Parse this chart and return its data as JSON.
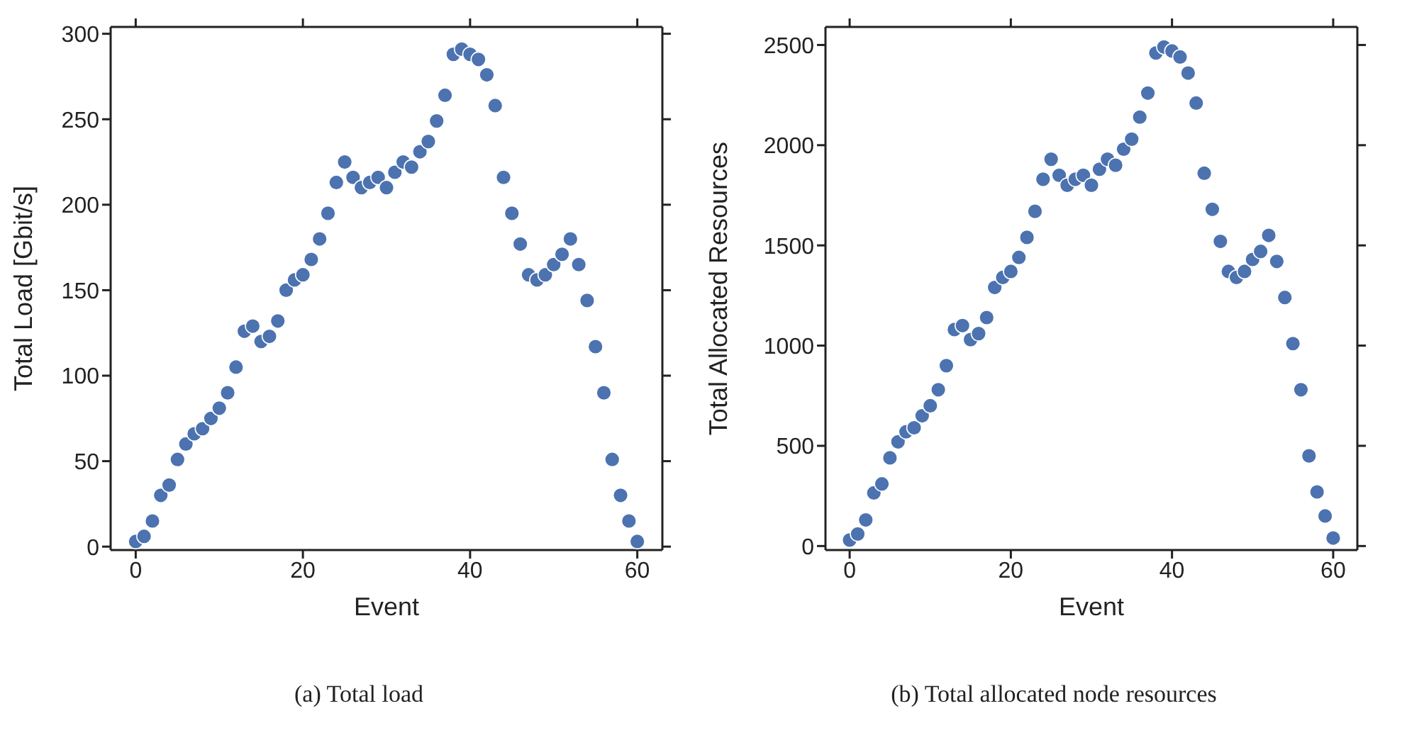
{
  "chart_data": [
    {
      "type": "scatter",
      "title": "(a) Total load",
      "xlabel": "Event",
      "ylabel": "Total Load [Gbit/s]",
      "marker": "circle",
      "x": [
        0,
        1,
        2,
        3,
        4,
        5,
        6,
        7,
        8,
        9,
        10,
        11,
        12,
        13,
        14,
        15,
        16,
        17,
        18,
        19,
        20,
        21,
        22,
        23,
        24,
        25,
        26,
        27,
        28,
        29,
        30,
        31,
        32,
        33,
        34,
        35,
        36,
        37,
        38,
        39,
        40,
        41,
        42,
        43,
        44,
        45,
        46,
        47,
        48,
        49,
        50,
        51,
        52,
        53,
        54,
        55,
        56,
        57,
        58,
        59,
        60
      ],
      "series": [
        {
          "color": "#4c72b0",
          "values": [
            3,
            6,
            15,
            30,
            36,
            51,
            60,
            66,
            69,
            75,
            81,
            90,
            105,
            126,
            129,
            120,
            123,
            132,
            150,
            156,
            159,
            168,
            180,
            195,
            213,
            225,
            216,
            210,
            213,
            216,
            210,
            219,
            225,
            222,
            231,
            237,
            249,
            264,
            288,
            291,
            288,
            285,
            276,
            258,
            216,
            195,
            177,
            159,
            156,
            159,
            165,
            171,
            180,
            165,
            144,
            117,
            90,
            51,
            30,
            15,
            3
          ]
        }
      ],
      "xlim": [
        -3,
        63
      ],
      "xticks": [
        0,
        20,
        40,
        60
      ],
      "ylim": [
        -2,
        304
      ],
      "yticks": [
        0,
        50,
        100,
        150,
        200,
        250,
        300
      ]
    },
    {
      "type": "scatter",
      "title": "(b) Total allocated node resources",
      "xlabel": "Event",
      "ylabel": "Total Allocated Resources",
      "marker": "circle",
      "x": [
        0,
        1,
        2,
        3,
        4,
        5,
        6,
        7,
        8,
        9,
        10,
        11,
        12,
        13,
        14,
        15,
        16,
        17,
        18,
        19,
        20,
        21,
        22,
        23,
        24,
        25,
        26,
        27,
        28,
        29,
        30,
        31,
        32,
        33,
        34,
        35,
        36,
        37,
        38,
        39,
        40,
        41,
        42,
        43,
        44,
        45,
        46,
        47,
        48,
        49,
        50,
        51,
        52,
        53,
        54,
        55,
        56,
        57,
        58,
        59,
        60
      ],
      "series": [
        {
          "color": "#4c72b0",
          "values": [
            30,
            60,
            130,
            265,
            310,
            440,
            520,
            570,
            590,
            650,
            700,
            780,
            900,
            1080,
            1100,
            1030,
            1060,
            1140,
            1290,
            1340,
            1370,
            1440,
            1540,
            1670,
            1830,
            1930,
            1850,
            1800,
            1830,
            1850,
            1800,
            1880,
            1930,
            1900,
            1980,
            2030,
            2140,
            2260,
            2460,
            2490,
            2470,
            2440,
            2360,
            2210,
            1860,
            1680,
            1520,
            1370,
            1340,
            1370,
            1430,
            1470,
            1550,
            1420,
            1240,
            1010,
            780,
            450,
            270,
            150,
            40
          ]
        }
      ],
      "xlim": [
        -3,
        63
      ],
      "xticks": [
        0,
        20,
        40,
        60
      ],
      "ylim": [
        -20,
        2590
      ],
      "yticks": [
        0,
        500,
        1000,
        1500,
        2000,
        2500
      ]
    }
  ]
}
